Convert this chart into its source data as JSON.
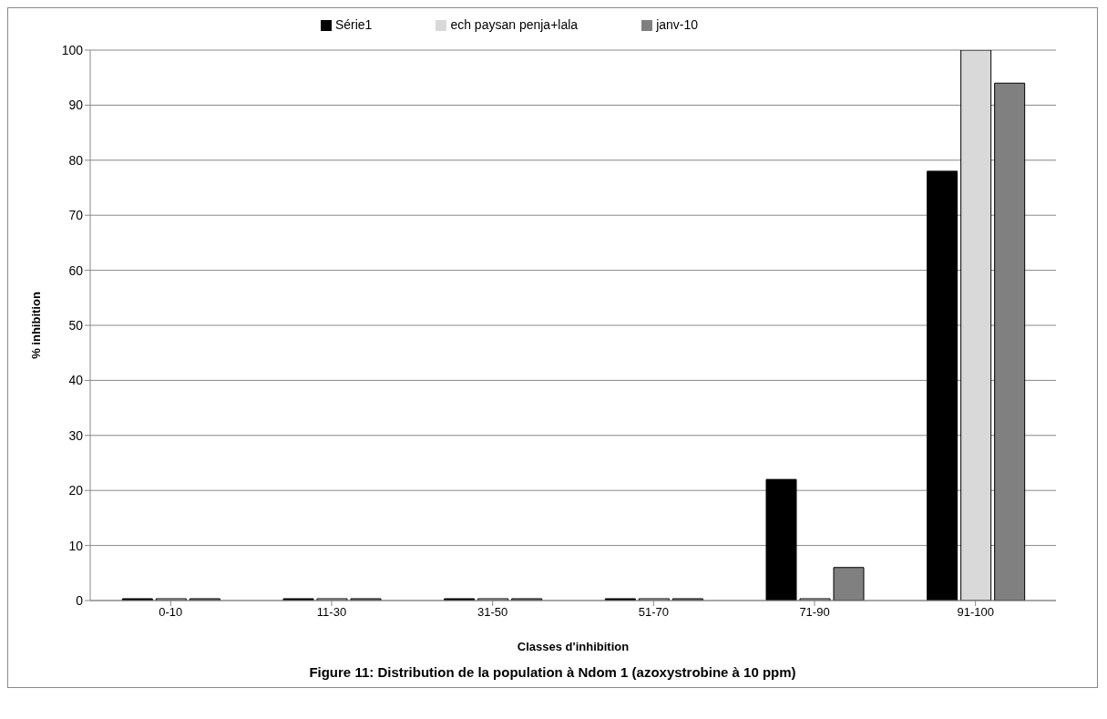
{
  "chart_data": {
    "type": "bar",
    "xlabel": "Classes d'inhibition",
    "ylabel": "% inhibition",
    "categories": [
      "0-10",
      "11-30",
      "31-50",
      "51-70",
      "71-90",
      "91-100"
    ],
    "series": [
      {
        "name": "Série1",
        "color": "#000000",
        "values": [
          0,
          0,
          0,
          0,
          22,
          78
        ]
      },
      {
        "name": "ech paysan penja+lala",
        "color": "#d9d9d9",
        "values": [
          0,
          0,
          0,
          0,
          0,
          100
        ]
      },
      {
        "name": "janv-10",
        "color": "#808080",
        "values": [
          0,
          0,
          0,
          0,
          6,
          94
        ]
      }
    ],
    "ylim": [
      0,
      100
    ],
    "yticks": [
      0,
      10,
      20,
      30,
      40,
      50,
      60,
      70,
      80,
      90,
      100
    ],
    "grid": "y",
    "legend": "top",
    "annotations": [
      "Figure 11: Distribution de la population à Ndom 1 (azoxystrobine à 10 ppm)"
    ]
  }
}
